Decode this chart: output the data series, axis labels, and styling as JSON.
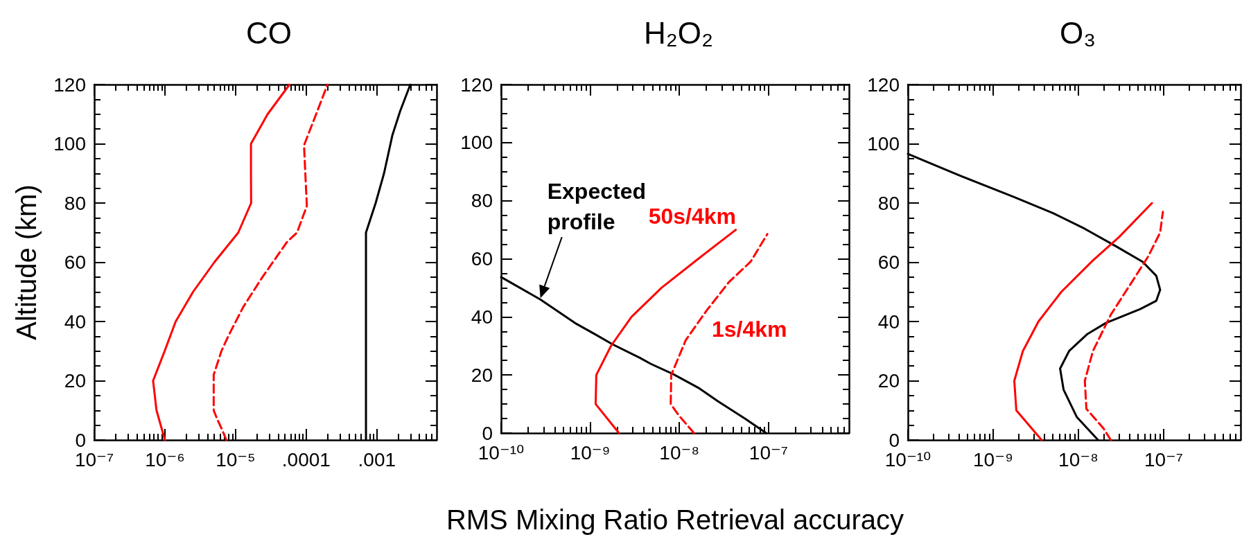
{
  "chart_data": [
    {
      "type": "line",
      "title": "CO",
      "ylabel": "Altitude (km)",
      "log": "x",
      "marker": "none",
      "xlim": [
        1e-07,
        0.007
      ],
      "ylim": [
        0,
        120
      ],
      "xticks": [
        {
          "value": 1e-07,
          "label": "10⁻⁷"
        },
        {
          "value": 2e-07,
          "label": null
        },
        {
          "value": 3e-07,
          "label": null
        },
        {
          "value": 4e-07,
          "label": null
        },
        {
          "value": 5e-07,
          "label": null
        },
        {
          "value": 6e-07,
          "label": null
        },
        {
          "value": 7e-07,
          "label": null
        },
        {
          "value": 8e-07,
          "label": null
        },
        {
          "value": 9e-07,
          "label": null
        },
        {
          "value": 1e-06,
          "label": "10⁻⁶"
        },
        {
          "value": 2e-06,
          "label": null
        },
        {
          "value": 3e-06,
          "label": null
        },
        {
          "value": 4e-06,
          "label": null
        },
        {
          "value": 5e-06,
          "label": null
        },
        {
          "value": 6e-06,
          "label": null
        },
        {
          "value": 7e-06,
          "label": null
        },
        {
          "value": 8e-06,
          "label": null
        },
        {
          "value": 9e-06,
          "label": null
        },
        {
          "value": 1e-05,
          "label": "10⁻⁵"
        },
        {
          "value": 2e-05,
          "label": null
        },
        {
          "value": 3e-05,
          "label": null
        },
        {
          "value": 4e-05,
          "label": null
        },
        {
          "value": 5e-05,
          "label": null
        },
        {
          "value": 6e-05,
          "label": null
        },
        {
          "value": 7e-05,
          "label": null
        },
        {
          "value": 8e-05,
          "label": null
        },
        {
          "value": 9e-05,
          "label": null
        },
        {
          "value": 0.0001,
          "label": ".0001"
        },
        {
          "value": 0.0002,
          "label": null
        },
        {
          "value": 0.0003,
          "label": null
        },
        {
          "value": 0.0004,
          "label": null
        },
        {
          "value": 0.0005,
          "label": null
        },
        {
          "value": 0.0006,
          "label": null
        },
        {
          "value": 0.0007,
          "label": null
        },
        {
          "value": 0.0008,
          "label": null
        },
        {
          "value": 0.0009,
          "label": null
        },
        {
          "value": 0.001,
          "label": ".001"
        },
        {
          "value": 0.002,
          "label": null
        },
        {
          "value": 0.003,
          "label": null
        },
        {
          "value": 0.004,
          "label": null
        },
        {
          "value": 0.005,
          "label": null
        },
        {
          "value": 0.006,
          "label": null
        }
      ],
      "yticks": [
        0,
        {
          "value": 5,
          "label": null
        },
        {
          "value": 10,
          "label": null
        },
        {
          "value": 15,
          "label": null
        },
        20,
        {
          "value": 25,
          "label": null
        },
        {
          "value": 30,
          "label": null
        },
        {
          "value": 35,
          "label": null
        },
        40,
        {
          "value": 45,
          "label": null
        },
        {
          "value": 50,
          "label": null
        },
        {
          "value": 55,
          "label": null
        },
        60,
        {
          "value": 65,
          "label": null
        },
        {
          "value": 70,
          "label": null
        },
        {
          "value": 75,
          "label": null
        },
        80,
        {
          "value": 85,
          "label": null
        },
        {
          "value": 90,
          "label": null
        },
        {
          "value": 95,
          "label": null
        },
        100,
        {
          "value": 105,
          "label": null
        },
        {
          "value": 110,
          "label": null
        },
        {
          "value": 115,
          "label": null
        },
        120
      ],
      "series": [
        {
          "color": "#000000",
          "x": [
            0.0007,
            0.0007,
            0.00096,
            0.00126,
            0.00166,
            0.00213,
            0.00297
          ],
          "values": [
            0,
            70,
            80,
            90,
            103,
            111,
            120
          ]
        },
        {
          "color": "#ff0000",
          "x": [
            1e-06,
            7.6e-07,
            6.8e-07,
            9.9e-07,
            1.42e-06,
            2.5e-06,
            5e-06,
            1.09e-05,
            1.66e-05,
            1.65e-05,
            1.65e-05,
            2.84e-05,
            5.8e-05
          ],
          "values": [
            0,
            10,
            20,
            30,
            40,
            50,
            60,
            70,
            80,
            90,
            100,
            110,
            120
          ]
        },
        {
          "color": "#ff0000",
          "line_style": "dashed",
          "x": [
            7.4e-06,
            6.3e-06,
            5.5e-06,
            4.9e-06,
            4.9e-06,
            6.3e-06,
            7.85e-06,
            1.29e-05,
            2.4e-05,
            5.4e-05,
            7.4e-05,
            0.000102,
            9.7e-05,
            9.3e-05,
            0.000133,
            0.0002
          ],
          "values": [
            0,
            4,
            7,
            10,
            22,
            30,
            35,
            45,
            55,
            67,
            70,
            79,
            90,
            99.5,
            109,
            120
          ]
        }
      ]
    },
    {
      "type": "line",
      "title": "H₂O₂",
      "xlabel": "RMS Mixing Ratio Retrieval accuracy",
      "log": "x",
      "marker": "none",
      "xlim": [
        1e-10,
        8e-07
      ],
      "ylim": [
        0,
        120
      ],
      "xticks": [
        {
          "value": 1e-10,
          "label": "10⁻¹⁰"
        },
        {
          "value": 2e-10,
          "label": null
        },
        {
          "value": 3e-10,
          "label": null
        },
        {
          "value": 4e-10,
          "label": null
        },
        {
          "value": 5e-10,
          "label": null
        },
        {
          "value": 6e-10,
          "label": null
        },
        {
          "value": 7e-10,
          "label": null
        },
        {
          "value": 8e-10,
          "label": null
        },
        {
          "value": 9e-10,
          "label": null
        },
        {
          "value": 1e-09,
          "label": "10⁻⁹"
        },
        {
          "value": 2e-09,
          "label": null
        },
        {
          "value": 3e-09,
          "label": null
        },
        {
          "value": 4e-09,
          "label": null
        },
        {
          "value": 5e-09,
          "label": null
        },
        {
          "value": 6e-09,
          "label": null
        },
        {
          "value": 7e-09,
          "label": null
        },
        {
          "value": 8e-09,
          "label": null
        },
        {
          "value": 9e-09,
          "label": null
        },
        {
          "value": 1e-08,
          "label": "10⁻⁸"
        },
        {
          "value": 2e-08,
          "label": null
        },
        {
          "value": 3e-08,
          "label": null
        },
        {
          "value": 4e-08,
          "label": null
        },
        {
          "value": 5e-08,
          "label": null
        },
        {
          "value": 6e-08,
          "label": null
        },
        {
          "value": 7e-08,
          "label": null
        },
        {
          "value": 8e-08,
          "label": null
        },
        {
          "value": 9e-08,
          "label": null
        },
        {
          "value": 1e-07,
          "label": "10⁻⁷"
        },
        {
          "value": 2e-07,
          "label": null
        },
        {
          "value": 3e-07,
          "label": null
        },
        {
          "value": 4e-07,
          "label": null
        },
        {
          "value": 5e-07,
          "label": null
        },
        {
          "value": 6e-07,
          "label": null
        },
        {
          "value": 7e-07,
          "label": null
        }
      ],
      "yticks": [
        0,
        {
          "value": 5,
          "label": null
        },
        {
          "value": 10,
          "label": null
        },
        {
          "value": 15,
          "label": null
        },
        20,
        {
          "value": 25,
          "label": null
        },
        {
          "value": 30,
          "label": null
        },
        {
          "value": 35,
          "label": null
        },
        40,
        {
          "value": 45,
          "label": null
        },
        {
          "value": 50,
          "label": null
        },
        {
          "value": 55,
          "label": null
        },
        60,
        {
          "value": 65,
          "label": null
        },
        {
          "value": 70,
          "label": null
        },
        {
          "value": 75,
          "label": null
        },
        80,
        {
          "value": 85,
          "label": null
        },
        {
          "value": 90,
          "label": null
        },
        {
          "value": 95,
          "label": null
        },
        100,
        {
          "value": 105,
          "label": null
        },
        {
          "value": 110,
          "label": null
        },
        {
          "value": 115,
          "label": null
        },
        120
      ],
      "annotations": [
        {
          "text": "Expected profile",
          "x": 2.76e-10,
          "y": 46
        },
        {
          "text": "50s/4km",
          "x": 4.3e-08,
          "y": 70
        },
        {
          "text": "1s/4km",
          "x": 2e-08,
          "y": 42
        }
      ],
      "series": [
        {
          "color": "#000000",
          "x": [
            1e-10,
            2.76e-10,
            7e-10,
            1.15e-09,
            1.77e-09,
            3.6e-09,
            4.8e-09,
            8.5e-09,
            1.63e-08,
            2.7e-08,
            5.5e-08,
            9.4e-08
          ],
          "values": [
            53.7,
            46,
            37.6,
            33.9,
            30.6,
            25.9,
            23.8,
            20.3,
            15.6,
            11,
            4.9,
            0
          ]
        },
        {
          "color": "#ff0000",
          "x": [
            2.1e-09,
            1.15e-09,
            1.17e-09,
            1.71e-09,
            2.9e-09,
            6.3e-09,
            1.63e-08,
            4.3e-08
          ],
          "values": [
            0,
            10,
            20,
            30,
            40,
            50,
            60,
            70
          ]
        },
        {
          "color": "#ff0000",
          "line_style": "dashed",
          "x": [
            1.46e-08,
            9.9e-09,
            8e-09,
            8.1e-09,
            1.18e-08,
            2e-08,
            3.6e-08,
            6.3e-08,
            9.7e-08
          ],
          "values": [
            0,
            6,
            10,
            20,
            32,
            42,
            52,
            59,
            68.5
          ]
        }
      ]
    },
    {
      "type": "line",
      "title": "O₃",
      "log": "x",
      "marker": "none",
      "xlim": [
        1e-10,
        8e-07
      ],
      "ylim": [
        0,
        120
      ],
      "xticks": [
        {
          "value": 1e-10,
          "label": "10⁻¹⁰"
        },
        {
          "value": 2e-10,
          "label": null
        },
        {
          "value": 3e-10,
          "label": null
        },
        {
          "value": 4e-10,
          "label": null
        },
        {
          "value": 5e-10,
          "label": null
        },
        {
          "value": 6e-10,
          "label": null
        },
        {
          "value": 7e-10,
          "label": null
        },
        {
          "value": 8e-10,
          "label": null
        },
        {
          "value": 9e-10,
          "label": null
        },
        {
          "value": 1e-09,
          "label": "10⁻⁹"
        },
        {
          "value": 2e-09,
          "label": null
        },
        {
          "value": 3e-09,
          "label": null
        },
        {
          "value": 4e-09,
          "label": null
        },
        {
          "value": 5e-09,
          "label": null
        },
        {
          "value": 6e-09,
          "label": null
        },
        {
          "value": 7e-09,
          "label": null
        },
        {
          "value": 8e-09,
          "label": null
        },
        {
          "value": 9e-09,
          "label": null
        },
        {
          "value": 1e-08,
          "label": "10⁻⁸"
        },
        {
          "value": 2e-08,
          "label": null
        },
        {
          "value": 3e-08,
          "label": null
        },
        {
          "value": 4e-08,
          "label": null
        },
        {
          "value": 5e-08,
          "label": null
        },
        {
          "value": 6e-08,
          "label": null
        },
        {
          "value": 7e-08,
          "label": null
        },
        {
          "value": 8e-08,
          "label": null
        },
        {
          "value": 9e-08,
          "label": null
        },
        {
          "value": 1e-07,
          "label": "10⁻⁷"
        },
        {
          "value": 2e-07,
          "label": null
        },
        {
          "value": 3e-07,
          "label": null
        },
        {
          "value": 4e-07,
          "label": null
        },
        {
          "value": 5e-07,
          "label": null
        },
        {
          "value": 6e-07,
          "label": null
        },
        {
          "value": 7e-07,
          "label": null
        }
      ],
      "yticks": [
        0,
        {
          "value": 5,
          "label": null
        },
        {
          "value": 10,
          "label": null
        },
        {
          "value": 15,
          "label": null
        },
        20,
        {
          "value": 25,
          "label": null
        },
        {
          "value": 30,
          "label": null
        },
        {
          "value": 35,
          "label": null
        },
        40,
        {
          "value": 45,
          "label": null
        },
        {
          "value": 50,
          "label": null
        },
        {
          "value": 55,
          "label": null
        },
        60,
        {
          "value": 65,
          "label": null
        },
        {
          "value": 70,
          "label": null
        },
        {
          "value": 75,
          "label": null
        },
        80,
        {
          "value": 85,
          "label": null
        },
        {
          "value": 90,
          "label": null
        },
        {
          "value": 95,
          "label": null
        },
        100,
        {
          "value": 105,
          "label": null
        },
        {
          "value": 110,
          "label": null
        },
        {
          "value": 115,
          "label": null
        },
        120
      ],
      "series": [
        {
          "color": "#000000",
          "x": [
            1e-10,
            4.2e-10,
            1.74e-09,
            5.1e-09,
            1.19e-08,
            2.8e-08,
            5.7e-08,
            8.2e-08,
            9.1e-08,
            8.2e-08,
            5.3e-08,
            2.1e-08,
            1.28e-08,
            7.8e-09,
            6.1e-09,
            6.7e-09,
            9.6e-09,
            1.7e-08
          ],
          "values": [
            96.6,
            89.1,
            82.1,
            76.5,
            71.3,
            65.3,
            60.1,
            55.4,
            50.7,
            47,
            44.2,
            39.5,
            35.8,
            30.1,
            24.1,
            17,
            7.7,
            0
          ]
        },
        {
          "color": "#ff0000",
          "x": [
            3.7e-09,
            1.87e-09,
            1.77e-09,
            2.23e-09,
            3.4e-09,
            6.3e-09,
            1.48e-08,
            3e-08,
            7.3e-08
          ],
          "values": [
            0,
            10,
            20,
            30,
            40,
            50,
            60.6,
            68.5,
            80
          ]
        },
        {
          "color": "#ff0000",
          "line_style": "dashed",
          "x": [
            2.4e-08,
            1.96e-08,
            1.24e-08,
            1.19e-08,
            1.48e-08,
            2.4e-08,
            4.3e-08,
            6.6e-08,
            9.1e-08,
            9.8e-08
          ],
          "values": [
            0,
            4,
            10.5,
            20,
            30,
            42.3,
            53.6,
            62,
            70,
            77
          ]
        }
      ]
    }
  ]
}
